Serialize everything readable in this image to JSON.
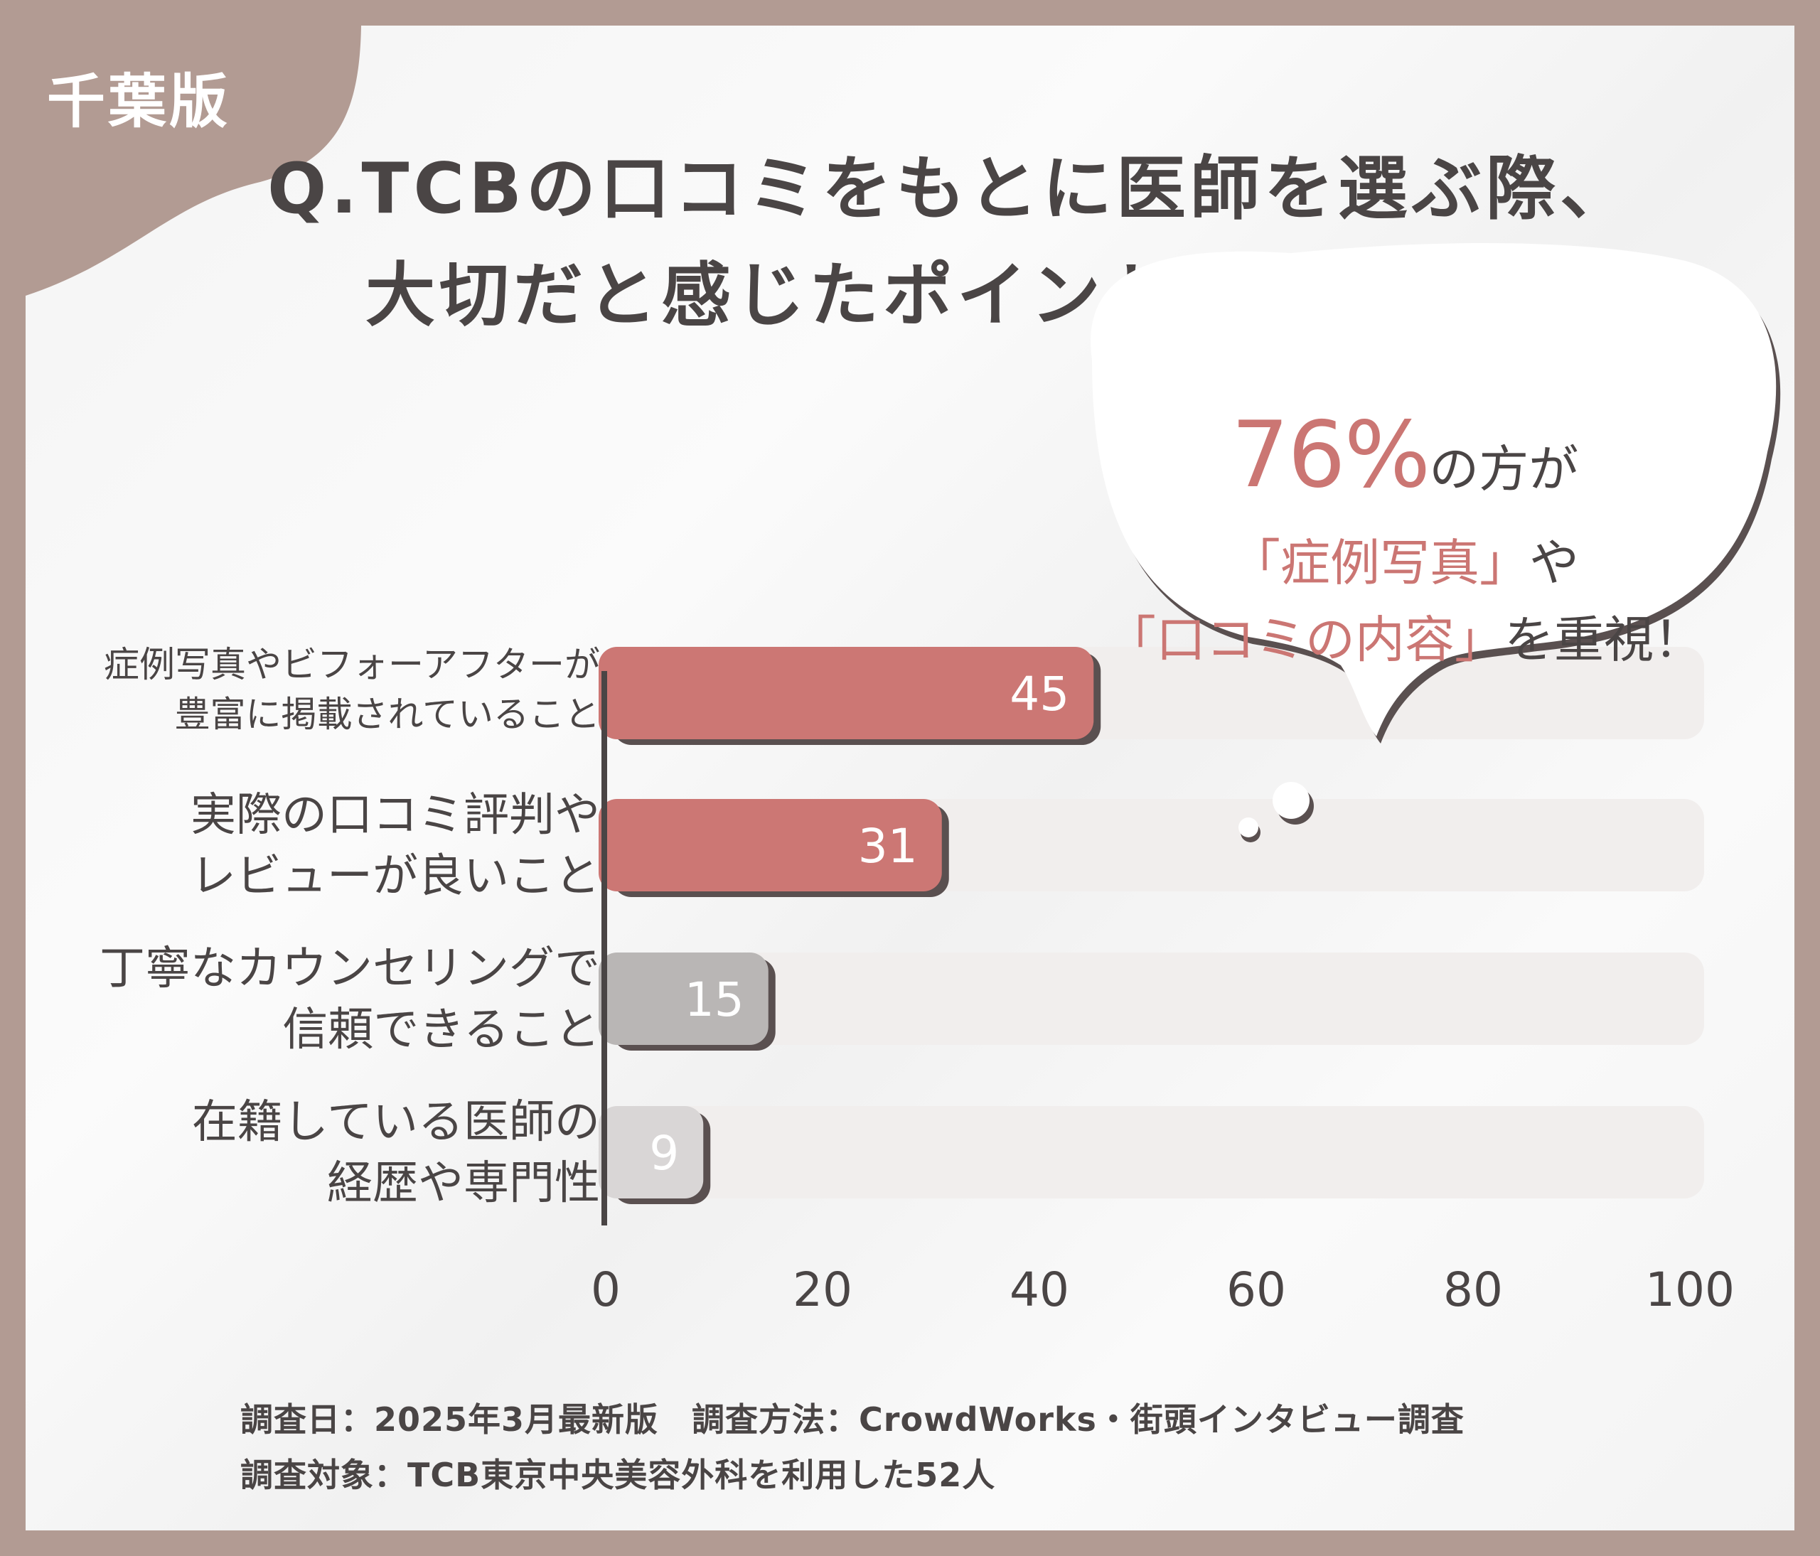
{
  "badge": "千葉版",
  "title": {
    "line1": "Q.TCBの口コミをもとに医師を選ぶ際、",
    "line2": "大切だと感じたポイントは？"
  },
  "callout": {
    "pct": "76%",
    "after_pct": "の方が",
    "quote1": "「症例写真」",
    "after_quote1": "や",
    "quote2": "「口コミの内容」",
    "after_quote2": "を重視！"
  },
  "chart_data": {
    "type": "bar",
    "orientation": "horizontal",
    "categories": [
      [
        "症例写真やビフォーアフターが",
        "豊富に掲載されていること"
      ],
      [
        "実際の口コミ評判や",
        "レビューが良いこと"
      ],
      [
        "丁寧なカウンセリングで",
        "信頼できること"
      ],
      [
        "在籍している医師の",
        "経歴や専門性"
      ]
    ],
    "values": [
      45,
      31,
      15,
      9
    ],
    "value_labels": [
      "45",
      "31",
      "15",
      "9"
    ],
    "xlim": [
      0,
      100
    ],
    "xticks": [
      "0",
      "20",
      "40",
      "60",
      "80",
      "100"
    ],
    "grid": false,
    "colors": {
      "highlight": "#cc7774",
      "gray": "#b9b6b5",
      "light_gray": "#d9d6d6",
      "track": "#f1eeed",
      "shadow": "#5a5050"
    },
    "bar_colors": [
      "highlight",
      "highlight",
      "gray",
      "light_gray"
    ]
  },
  "footer": {
    "line1": "調査日：2025年3月最新版　調査方法：CrowdWorks・街頭インタビュー調査",
    "line2": "調査対象：TCB東京中央美容外科を利用した52人"
  }
}
